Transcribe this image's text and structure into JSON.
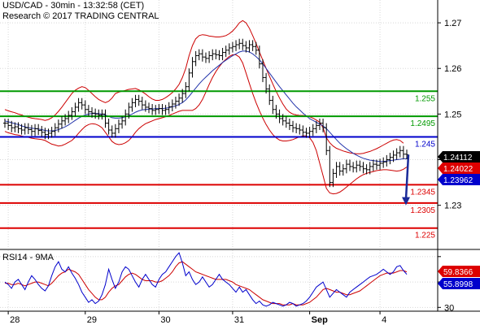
{
  "header": {
    "title": "USD/CAD - 30min - 13:32:58 (CET)",
    "subtitle": "Research © 2017 TRADING CENTRAL"
  },
  "chart_data": {
    "type": "line",
    "price_panel": {
      "ylim": [
        1.2205,
        1.275
      ],
      "y_ticks": [
        1.27,
        1.26,
        1.25,
        1.24,
        1.23
      ],
      "y_tick_labels": [
        "1.27",
        "1.26",
        "1.25",
        "",
        "1.23"
      ],
      "x_tick_labels": [
        "28",
        "29",
        "30",
        "31",
        "Sep",
        "4"
      ],
      "x_tick_index": [
        1,
        24,
        46,
        68,
        91,
        112
      ],
      "grid": true,
      "levels": [
        {
          "value": 1.255,
          "label": "1.255",
          "color": "#009900"
        },
        {
          "value": 1.2495,
          "label": "1.2495",
          "color": "#009900"
        },
        {
          "value": 1.245,
          "label": "1.245",
          "color": "#0000cc"
        },
        {
          "value": 1.2345,
          "label": "1.2345",
          "color": "#dd0000"
        },
        {
          "value": 1.2305,
          "label": "1.2305",
          "color": "#dd0000"
        },
        {
          "value": 1.225,
          "label": "1.225",
          "color": "#dd0000"
        }
      ],
      "price_tags": [
        {
          "value": 1.24112,
          "label": "1.24112",
          "color": "#000000"
        },
        {
          "value": 1.24022,
          "label": "1.24022",
          "color": "#dd0000"
        },
        {
          "value": 1.23962,
          "label": "1.23962",
          "color": "#0000cc"
        }
      ],
      "close": [
        1.248,
        1.2475,
        1.247,
        1.2472,
        1.2468,
        1.2465,
        1.247,
        1.2466,
        1.2462,
        1.2468,
        1.2464,
        1.246,
        1.2455,
        1.2458,
        1.2462,
        1.247,
        1.2478,
        1.2485,
        1.249,
        1.2497,
        1.2505,
        1.2515,
        1.2525,
        1.252,
        1.251,
        1.2505,
        1.2502,
        1.25,
        1.2498,
        1.25,
        1.248,
        1.2465,
        1.2458,
        1.2468,
        1.2478,
        1.2485,
        1.25,
        1.2515,
        1.2525,
        1.2532,
        1.2528,
        1.252,
        1.2515,
        1.2512,
        1.2508,
        1.251,
        1.2512,
        1.2508,
        1.251,
        1.2516,
        1.2522,
        1.2528,
        1.2535,
        1.2545,
        1.256,
        1.259,
        1.2615,
        1.2628,
        1.2632,
        1.2625,
        1.2622,
        1.2628,
        1.2632,
        1.263,
        1.2628,
        1.2635,
        1.264,
        1.2645,
        1.2648,
        1.2652,
        1.2655,
        1.265,
        1.2645,
        1.2652,
        1.2648,
        1.264,
        1.261,
        1.258,
        1.2555,
        1.253,
        1.251,
        1.25,
        1.249,
        1.2485,
        1.248,
        1.2475,
        1.247,
        1.2468,
        1.2465,
        1.246,
        1.2458,
        1.2462,
        1.2468,
        1.2475,
        1.248,
        1.247,
        1.242,
        1.235,
        1.237,
        1.2385,
        1.2375,
        1.238,
        1.239,
        1.2385,
        1.2382,
        1.2388,
        1.2385,
        1.238,
        1.2378,
        1.2385,
        1.239,
        1.2388,
        1.2392,
        1.2395,
        1.24,
        1.2405,
        1.241,
        1.2415,
        1.242,
        1.2412,
        1.2411
      ],
      "ma": [
        1.2485,
        1.2483,
        1.2481,
        1.2479,
        1.2477,
        1.2474,
        1.2472,
        1.247,
        1.2469,
        1.2468,
        1.2467,
        1.2466,
        1.2464,
        1.2463,
        1.2463,
        1.2464,
        1.2466,
        1.2469,
        1.2472,
        1.2476,
        1.2481,
        1.2486,
        1.2491,
        1.2495,
        1.2498,
        1.25,
        1.2501,
        1.2501,
        1.2501,
        1.25,
        1.2498,
        1.2495,
        1.2492,
        1.2491,
        1.2491,
        1.2492,
        1.2494,
        1.2497,
        1.25,
        1.2504,
        1.2507,
        1.2509,
        1.251,
        1.2511,
        1.2511,
        1.2512,
        1.2512,
        1.2512,
        1.2513,
        1.2514,
        1.2516,
        1.2518,
        1.2521,
        1.2525,
        1.2531,
        1.2539,
        1.2548,
        1.2557,
        1.2566,
        1.2574,
        1.2581,
        1.2588,
        1.2595,
        1.2601,
        1.2607,
        1.2613,
        1.2618,
        1.2623,
        1.2628,
        1.2632,
        1.2636,
        1.2638,
        1.2638,
        1.2636,
        1.2632,
        1.2626,
        1.2619,
        1.261,
        1.26,
        1.259,
        1.258,
        1.257,
        1.256,
        1.2551,
        1.2542,
        1.2533,
        1.2524,
        1.2516,
        1.2509,
        1.2502,
        1.2496,
        1.249,
        1.2486,
        1.2482,
        1.2478,
        1.2474,
        1.2468,
        1.246,
        1.2452,
        1.2444,
        1.2436,
        1.243,
        1.2424,
        1.2419,
        1.2414,
        1.241,
        1.2406,
        1.2403,
        1.2401,
        1.2399,
        1.2398,
        1.2397,
        1.2396,
        1.2396,
        1.2397,
        1.2398,
        1.2399,
        1.24,
        1.2401,
        1.2402,
        1.2402
      ],
      "band_upper": [
        1.251,
        1.2507,
        1.2505,
        1.2503,
        1.25,
        1.2498,
        1.2495,
        1.2493,
        1.2491,
        1.249,
        1.2489,
        1.2488,
        1.2486,
        1.2488,
        1.2492,
        1.2498,
        1.2506,
        1.2515,
        1.2525,
        1.2535,
        1.2545,
        1.2552,
        1.2557,
        1.256,
        1.2558,
        1.2552,
        1.2545,
        1.2538,
        1.2532,
        1.2528,
        1.2525,
        1.2528,
        1.2535,
        1.2545,
        1.2548,
        1.255,
        1.2552,
        1.2554,
        1.2555,
        1.2556,
        1.2553,
        1.2549,
        1.2544,
        1.2538,
        1.2533,
        1.253,
        1.253,
        1.2532,
        1.2536,
        1.2541,
        1.2547,
        1.2555,
        1.2565,
        1.258,
        1.26,
        1.2628,
        1.265,
        1.2665,
        1.2672,
        1.2674,
        1.2673,
        1.2671,
        1.267,
        1.2669,
        1.2669,
        1.267,
        1.2672,
        1.2676,
        1.2682,
        1.269,
        1.27,
        1.2705,
        1.27,
        1.2688,
        1.2672,
        1.2655,
        1.2636,
        1.2618,
        1.26,
        1.2583,
        1.2566,
        1.255,
        1.2535,
        1.2522,
        1.2511,
        1.2504,
        1.25,
        1.2498,
        1.2497,
        1.2497,
        1.2496,
        1.2494,
        1.2491,
        1.2487,
        1.2482,
        1.247,
        1.2448,
        1.2437,
        1.243,
        1.2425,
        1.2422,
        1.2419,
        1.2417,
        1.2415,
        1.2414,
        1.2413,
        1.2413,
        1.2414,
        1.2416,
        1.2418,
        1.2421,
        1.2424,
        1.2428,
        1.2432,
        1.2436,
        1.244,
        1.2443,
        1.2444,
        1.2442,
        1.2436
      ],
      "band_lower": [
        1.2462,
        1.2459,
        1.2457,
        1.2455,
        1.2454,
        1.2452,
        1.245,
        1.2449,
        1.2447,
        1.2446,
        1.2445,
        1.2444,
        1.2442,
        1.2438,
        1.2434,
        1.2432,
        1.243,
        1.2431,
        1.2434,
        1.2438,
        1.2442,
        1.2449,
        1.2458,
        1.2466,
        1.2473,
        1.2477,
        1.2479,
        1.2478,
        1.2475,
        1.247,
        1.246,
        1.245,
        1.244,
        1.2435,
        1.2433,
        1.2434,
        1.2437,
        1.2442,
        1.245,
        1.246,
        1.2468,
        1.2474,
        1.2479,
        1.2482,
        1.2485,
        1.2488,
        1.249,
        1.2492,
        1.2494,
        1.2497,
        1.25,
        1.2503,
        1.2506,
        1.2508,
        1.2508,
        1.2508,
        1.2508,
        1.2512,
        1.252,
        1.2532,
        1.2548,
        1.2565,
        1.258,
        1.2593,
        1.2604,
        1.2613,
        1.262,
        1.2626,
        1.263,
        1.263,
        1.2625,
        1.2612,
        1.259,
        1.2567,
        1.2545,
        1.2525,
        1.2507,
        1.2491,
        1.2477,
        1.2465,
        1.2455,
        1.2448,
        1.2443,
        1.2441,
        1.2441,
        1.2442,
        1.2444,
        1.2447,
        1.245,
        1.2452,
        1.2452,
        1.2448,
        1.2438,
        1.242,
        1.2392,
        1.2365,
        1.2337,
        1.2327,
        1.2325,
        1.2326,
        1.2329,
        1.2334,
        1.234,
        1.2346,
        1.2352,
        1.2358,
        1.2363,
        1.2367,
        1.237,
        1.2372,
        1.2374,
        1.2376,
        1.2377,
        1.2378,
        1.2378,
        1.2377,
        1.2376,
        1.2375,
        1.2376,
        1.2379,
        1.2384
      ],
      "forecast": {
        "from": 1.2411,
        "to": 1.23
      }
    },
    "rsi_panel": {
      "title": "RSI14 - 9MA",
      "ylim": [
        27,
        75
      ],
      "y_ticks": [
        70,
        50,
        30
      ],
      "y_tick_labels": [
        "",
        "",
        "30"
      ],
      "rsi": [
        50,
        48,
        45,
        50,
        52,
        48,
        44,
        50,
        55,
        52,
        48,
        45,
        43,
        47,
        55,
        62,
        66,
        60,
        58,
        62,
        57,
        53,
        48,
        42,
        38,
        34,
        36,
        33,
        35,
        40,
        48,
        60,
        52,
        45,
        50,
        58,
        62,
        60,
        55,
        50,
        46,
        52,
        56,
        52,
        48,
        46,
        52,
        56,
        58,
        62,
        66,
        70,
        73,
        65,
        55,
        58,
        52,
        48,
        50,
        54,
        50,
        46,
        48,
        52,
        56,
        52,
        50,
        48,
        45,
        42,
        46,
        42,
        44,
        40,
        36,
        33,
        35,
        32,
        31,
        32,
        34,
        33,
        32,
        31,
        32,
        34,
        33,
        31,
        32,
        33,
        35,
        38,
        42,
        46,
        48,
        50,
        44,
        38,
        41,
        44,
        42,
        40,
        38,
        42,
        44,
        46,
        48,
        50,
        52,
        54,
        55,
        56,
        58,
        60,
        58,
        56,
        58,
        62,
        63,
        59,
        56
      ],
      "ma": [
        49,
        49,
        48,
        48,
        49,
        48,
        47,
        48,
        49,
        50,
        50,
        49,
        48,
        47,
        49,
        52,
        55,
        57,
        58,
        60,
        59,
        58,
        56,
        52,
        48,
        44,
        41,
        38,
        36,
        36,
        38,
        42,
        45,
        47,
        48,
        51,
        54,
        56,
        57,
        56,
        54,
        52,
        51,
        51,
        51,
        50,
        50,
        51,
        53,
        55,
        58,
        62,
        65,
        66,
        64,
        62,
        60,
        58,
        57,
        56,
        55,
        54,
        53,
        52,
        52,
        52,
        52,
        51,
        50,
        48,
        47,
        46,
        45,
        44,
        42,
        40,
        38,
        36,
        35,
        34,
        33,
        33,
        33,
        32,
        32,
        32,
        33,
        32,
        32,
        32,
        33,
        34,
        36,
        38,
        41,
        44,
        45,
        44,
        43,
        42,
        42,
        41,
        40,
        40,
        41,
        42,
        43,
        45,
        47,
        49,
        51,
        53,
        55,
        56,
        57,
        57,
        57,
        58,
        59,
        59,
        58
      ],
      "tags": [
        {
          "value": 59.8366,
          "label": "59.8366",
          "color": "#dd0000"
        },
        {
          "value": 55.8998,
          "label": "55.8998",
          "color": "#0000cc"
        }
      ]
    }
  }
}
